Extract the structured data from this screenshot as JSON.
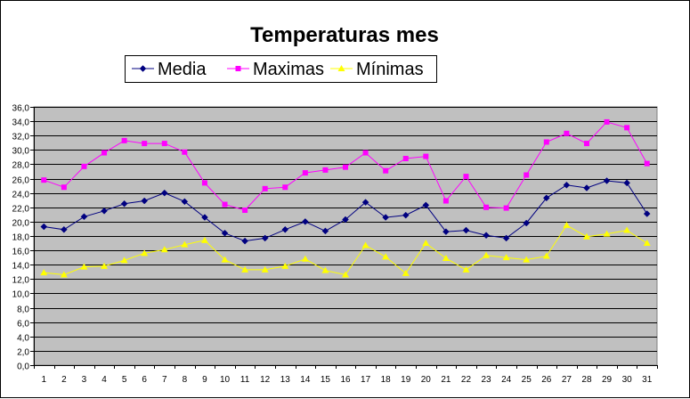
{
  "chart_data": {
    "type": "line",
    "title": "Temperaturas mes",
    "xlabel": "",
    "ylabel": "",
    "ylim": [
      0,
      36
    ],
    "y_tick_step": 2,
    "y_tick_format": "0,0",
    "grid": true,
    "legend_position": "top",
    "plot_background": "#c0c0c0",
    "x": [
      1,
      2,
      3,
      4,
      5,
      6,
      7,
      8,
      9,
      10,
      11,
      12,
      13,
      14,
      15,
      16,
      17,
      18,
      19,
      20,
      21,
      22,
      23,
      24,
      25,
      26,
      27,
      28,
      29,
      30,
      31
    ],
    "series": [
      {
        "name": "Media",
        "color": "#000080",
        "marker": "diamond",
        "values": [
          19.3,
          18.9,
          20.7,
          21.5,
          22.5,
          22.9,
          24.0,
          22.8,
          20.6,
          18.4,
          17.3,
          17.7,
          18.9,
          20.0,
          18.7,
          20.3,
          22.7,
          20.6,
          20.9,
          22.3,
          18.6,
          18.8,
          18.1,
          17.7,
          19.8,
          23.3,
          25.1,
          24.7,
          25.7,
          25.4,
          21.1
        ]
      },
      {
        "name": "Maximas",
        "color": "#ff00ff",
        "marker": "square",
        "values": [
          25.8,
          24.8,
          27.7,
          29.6,
          31.3,
          30.9,
          30.9,
          29.7,
          25.4,
          22.4,
          21.6,
          24.6,
          24.8,
          26.8,
          27.2,
          27.6,
          29.6,
          27.1,
          28.8,
          29.1,
          22.9,
          26.3,
          22.0,
          21.9,
          26.5,
          31.1,
          32.3,
          30.9,
          33.9,
          33.1,
          28.1
        ]
      },
      {
        "name": "Mínimas",
        "color": "#ffff00",
        "marker": "triangle",
        "values": [
          12.9,
          12.6,
          13.7,
          13.8,
          14.6,
          15.6,
          16.1,
          16.8,
          17.4,
          14.7,
          13.3,
          13.3,
          13.8,
          14.8,
          13.2,
          12.6,
          16.7,
          15.1,
          12.8,
          17.0,
          14.9,
          13.3,
          15.3,
          15.0,
          14.7,
          15.2,
          19.5,
          17.9,
          18.3,
          18.8,
          17.0
        ]
      }
    ]
  }
}
